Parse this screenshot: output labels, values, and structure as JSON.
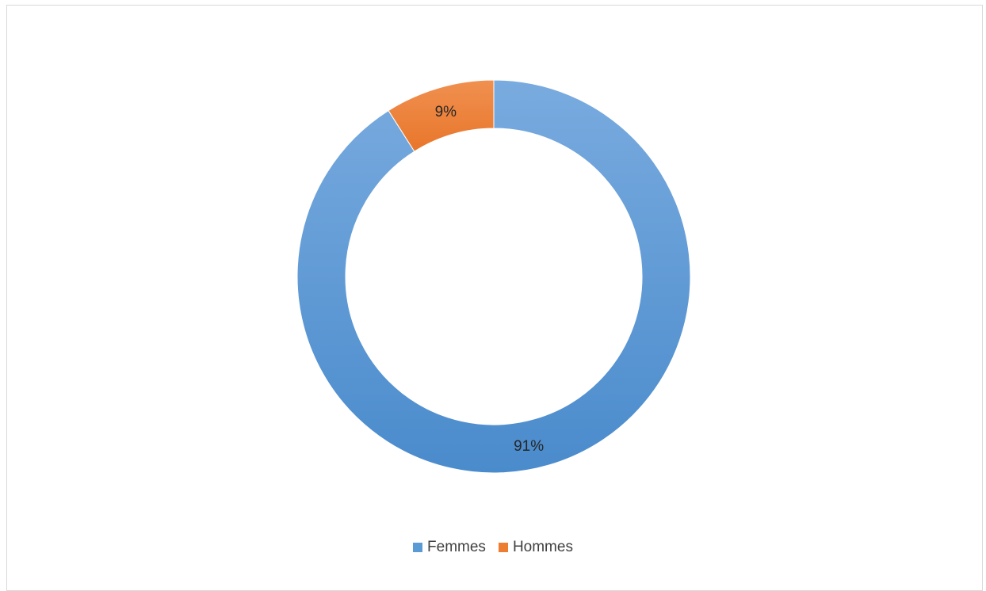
{
  "chart_data": {
    "type": "pie",
    "variant": "doughnut",
    "categories": [
      "Femmes",
      "Hommes"
    ],
    "values": [
      91,
      9
    ],
    "data_labels": [
      "91%",
      "9%"
    ],
    "colors": [
      "#5b9bd5",
      "#ed7d31"
    ],
    "legend_position": "bottom",
    "title": ""
  },
  "legend": {
    "items": [
      {
        "label": "Femmes",
        "color": "#5b9bd5"
      },
      {
        "label": "Hommes",
        "color": "#ed7d31"
      }
    ]
  }
}
